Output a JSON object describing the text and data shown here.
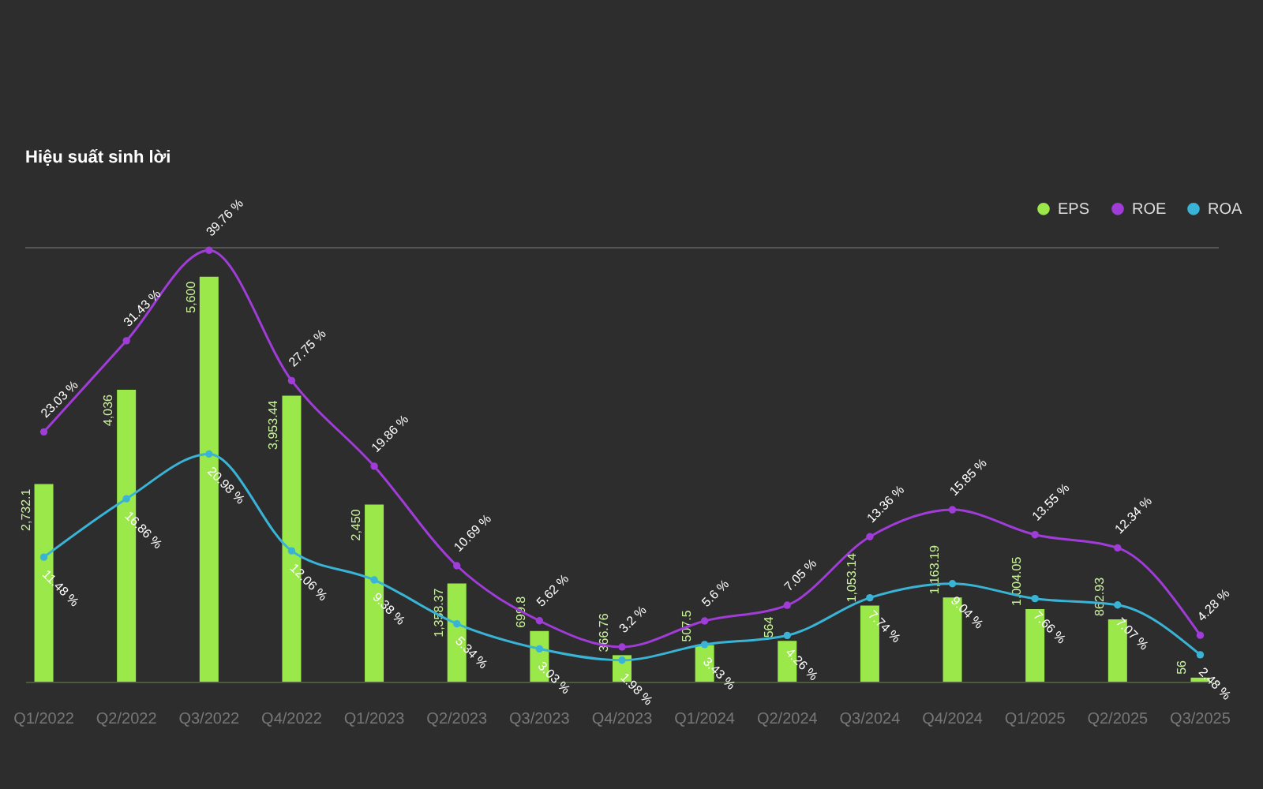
{
  "chart_data": {
    "type": "bar",
    "title": "Hiệu suất sinh lời",
    "categories": [
      "Q1/2022",
      "Q2/2022",
      "Q3/2022",
      "Q4/2022",
      "Q1/2023",
      "Q2/2023",
      "Q3/2023",
      "Q4/2023",
      "Q1/2024",
      "Q2/2024",
      "Q3/2024",
      "Q4/2024",
      "Q1/2025",
      "Q2/2025",
      "Q3/2025"
    ],
    "series": [
      {
        "name": "EPS",
        "color": "#9be84a",
        "values": [
          2732.1,
          4036,
          5600,
          3953.44,
          2450,
          1358.37,
          699.8,
          366.76,
          507.5,
          564,
          1053.14,
          1163.19,
          1004.05,
          862.93,
          56
        ],
        "value_labels": [
          "2,732.1",
          "4,036",
          "5,600",
          "3,953.44",
          "2,450",
          "1,358.37",
          "699.8",
          "366.76",
          "507.5",
          "564",
          "1,053.14",
          "1,163.19",
          "1,004.05",
          "862.93",
          "56"
        ]
      },
      {
        "name": "ROE",
        "type": "line",
        "axis": "y2",
        "color": "#a03cd8",
        "values": [
          23.03,
          31.43,
          39.76,
          27.75,
          19.86,
          10.69,
          5.62,
          3.2,
          5.6,
          7.05,
          13.36,
          15.85,
          13.55,
          12.34,
          4.28
        ],
        "value_labels": [
          "23.03 %",
          "31.43 %",
          "39.76 %",
          "27.75 %",
          "19.86 %",
          "10.69 %",
          "5.62 %",
          "3.2 %",
          "5.6 %",
          "7.05 %",
          "13.36 %",
          "15.85 %",
          "13.55 %",
          "12.34 %",
          "4.28 %"
        ]
      },
      {
        "name": "ROA",
        "type": "line",
        "axis": "y2",
        "color": "#3ab4d6",
        "values": [
          11.48,
          16.86,
          20.98,
          12.06,
          9.38,
          5.34,
          3.03,
          1.98,
          3.43,
          4.26,
          7.74,
          9.04,
          7.66,
          7.07,
          2.48
        ],
        "value_labels": [
          "11.48 %",
          "16.86 %",
          "20.98 %",
          "12.06 %",
          "9.38 %",
          "5.34 %",
          "3.03 %",
          "1.98 %",
          "3.43 %",
          "4.26 %",
          "7.74 %",
          "9.04 %",
          "7.66 %",
          "7.07 %",
          "2.48 %"
        ]
      }
    ],
    "ylim": [
      0,
      6000
    ],
    "y2lim": [
      0,
      40
    ],
    "tick_labels": "x",
    "legend": "top right",
    "marker": "circle"
  }
}
